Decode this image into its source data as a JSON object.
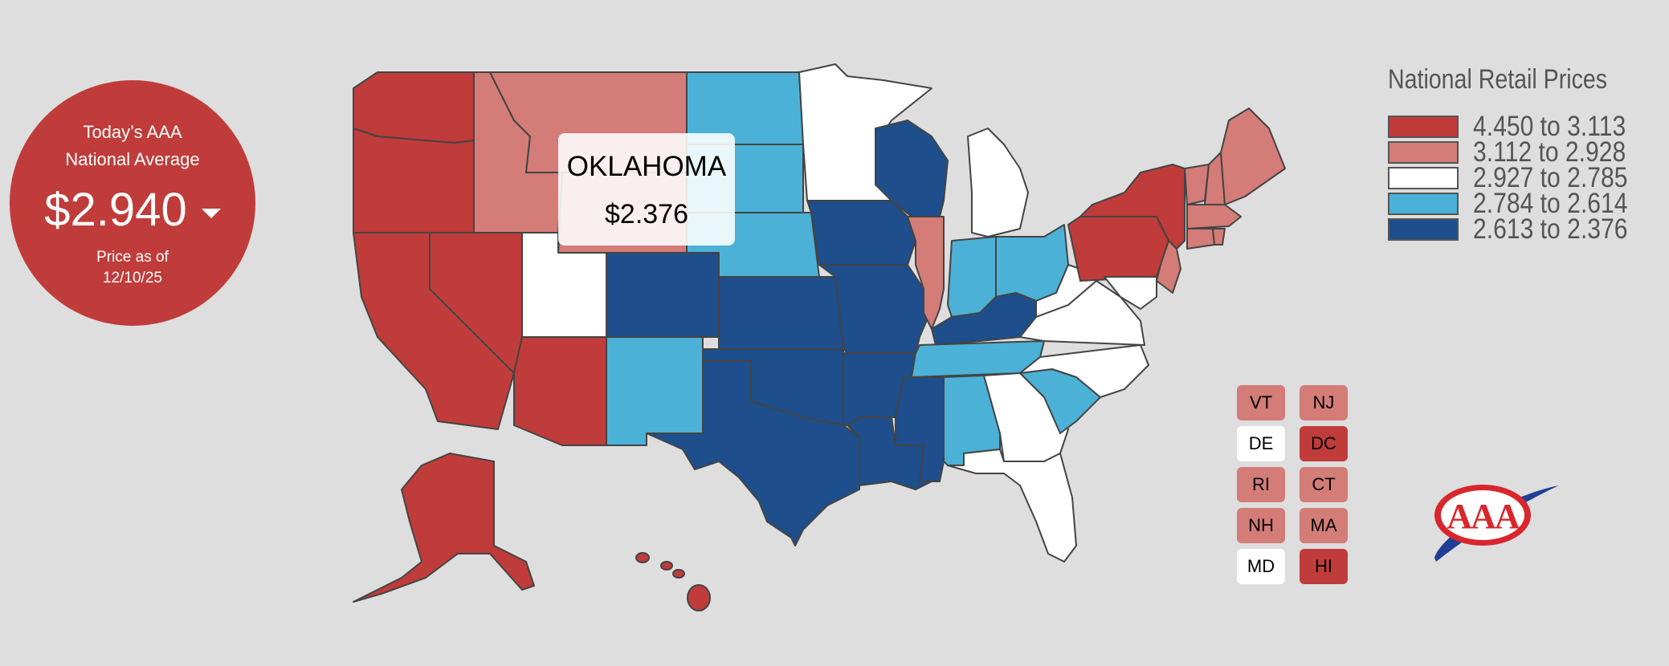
{
  "national_average": {
    "heading_line1": "Today’s AAA",
    "heading_line2": "National Average",
    "value": "$2.940",
    "trend": "down",
    "date_line1": "Price as of",
    "date_line2": "12/10/25"
  },
  "tooltip": {
    "state": "OKLAHOMA",
    "price": "$2.376"
  },
  "legend": {
    "title": "National Retail Prices",
    "items": [
      {
        "label": "4.450 to 3.113",
        "color": "#c03c3a"
      },
      {
        "label": "3.112 to 2.928",
        "color": "#d47c78"
      },
      {
        "label": "2.927 to 2.785",
        "color": "#ffffff"
      },
      {
        "label": "2.784 to 2.614",
        "color": "#4cb1d7"
      },
      {
        "label": "2.613 to 2.376",
        "color": "#1e4e8c"
      }
    ]
  },
  "small_states": [
    {
      "abbr": "VT",
      "tier": 1
    },
    {
      "abbr": "NJ",
      "tier": 1
    },
    {
      "abbr": "DE",
      "tier": 2
    },
    {
      "abbr": "DC",
      "tier": 0
    },
    {
      "abbr": "RI",
      "tier": 1
    },
    {
      "abbr": "CT",
      "tier": 1
    },
    {
      "abbr": "NH",
      "tier": 1
    },
    {
      "abbr": "MA",
      "tier": 1
    },
    {
      "abbr": "MD",
      "tier": 2
    },
    {
      "abbr": "HI",
      "tier": 0
    }
  ],
  "states": [
    {
      "name": "Washington",
      "tier": 0
    },
    {
      "name": "Oregon",
      "tier": 0
    },
    {
      "name": "California",
      "tier": 0
    },
    {
      "name": "Nevada",
      "tier": 0
    },
    {
      "name": "Idaho",
      "tier": 1
    },
    {
      "name": "Montana",
      "tier": 1
    },
    {
      "name": "Wyoming",
      "tier": 1
    },
    {
      "name": "Utah",
      "tier": 2
    },
    {
      "name": "Arizona",
      "tier": 0
    },
    {
      "name": "Colorado",
      "tier": 4
    },
    {
      "name": "New Mexico",
      "tier": 3
    },
    {
      "name": "North Dakota",
      "tier": 3
    },
    {
      "name": "South Dakota",
      "tier": 3
    },
    {
      "name": "Nebraska",
      "tier": 3
    },
    {
      "name": "Kansas",
      "tier": 4
    },
    {
      "name": "Oklahoma",
      "tier": 4
    },
    {
      "name": "Texas",
      "tier": 4
    },
    {
      "name": "Minnesota",
      "tier": 2
    },
    {
      "name": "Iowa",
      "tier": 4
    },
    {
      "name": "Missouri",
      "tier": 4
    },
    {
      "name": "Arkansas",
      "tier": 4
    },
    {
      "name": "Louisiana",
      "tier": 4
    },
    {
      "name": "Wisconsin",
      "tier": 4
    },
    {
      "name": "Illinois",
      "tier": 1
    },
    {
      "name": "Michigan",
      "tier": 2
    },
    {
      "name": "Indiana",
      "tier": 3
    },
    {
      "name": "Ohio",
      "tier": 3
    },
    {
      "name": "Kentucky",
      "tier": 4
    },
    {
      "name": "Tennessee",
      "tier": 3
    },
    {
      "name": "Mississippi",
      "tier": 4
    },
    {
      "name": "Alabama",
      "tier": 3
    },
    {
      "name": "Georgia",
      "tier": 2
    },
    {
      "name": "Florida",
      "tier": 2
    },
    {
      "name": "South Carolina",
      "tier": 3
    },
    {
      "name": "North Carolina",
      "tier": 2
    },
    {
      "name": "Virginia",
      "tier": 2
    },
    {
      "name": "West Virginia",
      "tier": 2
    },
    {
      "name": "Pennsylvania",
      "tier": 0
    },
    {
      "name": "New York",
      "tier": 0
    },
    {
      "name": "Maine",
      "tier": 1
    },
    {
      "name": "Alaska",
      "tier": 0
    }
  ],
  "logo": {
    "text": "AAA",
    "colors": {
      "ring": "#d9262c",
      "swoosh": "#1f3f96"
    }
  }
}
